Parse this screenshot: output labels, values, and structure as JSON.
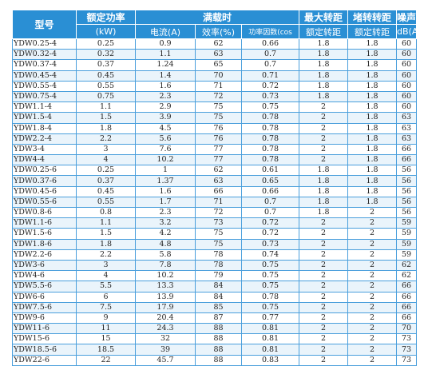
{
  "header": {
    "model": "型号",
    "rated_power": "额定功率",
    "rated_power_unit": "(kW)",
    "full_load": "满载时",
    "current": "电流(A)",
    "efficiency": "效率(%)",
    "power_factor": "功率因数(cos",
    "max_torque": "最大转距",
    "max_torque_sub": "额定转距",
    "locked_torque": "堵转转距",
    "locked_torque_sub": "额定转距",
    "noise": "噪声",
    "noise_unit": "dB(A)"
  },
  "rows": [
    [
      "YDW0.25-4",
      "0.25",
      "0.9",
      "62",
      "0.66",
      "1.8",
      "1.8",
      "60"
    ],
    [
      "YDW0.32-4",
      "0.32",
      "1.1",
      "63",
      "0.7",
      "1.8",
      "1.8",
      "60"
    ],
    [
      "YDW0.37-4",
      "0.37",
      "1.24",
      "65",
      "0.7",
      "1.8",
      "1.8",
      "60"
    ],
    [
      "YDW0.45-4",
      "0.45",
      "1.4",
      "70",
      "0.71",
      "1.8",
      "1.8",
      "60"
    ],
    [
      "YDW0.55-4",
      "0.55",
      "1.6",
      "71",
      "0.72",
      "1.8",
      "1.8",
      "60"
    ],
    [
      "YDW0.75-4",
      "0.75",
      "2.3",
      "72",
      "0.73",
      "1.8",
      "1.8",
      "60"
    ],
    [
      "YDW1.1-4",
      "1.1",
      "2.9",
      "75",
      "0.75",
      "2",
      "1.8",
      "60"
    ],
    [
      "YDW1.5-4",
      "1.5",
      "3.9",
      "75",
      "0.78",
      "2",
      "1.8",
      "63"
    ],
    [
      "YDW1.8-4",
      "1.8",
      "4.5",
      "76",
      "0.78",
      "2",
      "1.8",
      "63"
    ],
    [
      "YDW2.2-4",
      "2.2",
      "5.6",
      "76",
      "0.78",
      "2",
      "1.8",
      "63"
    ],
    [
      "YDW3-4",
      "3",
      "7.6",
      "77",
      "0.78",
      "2",
      "1.8",
      "66"
    ],
    [
      "YDW4-4",
      "4",
      "10.2",
      "77",
      "0.78",
      "2",
      "1.8",
      "66"
    ],
    [
      "YDW0.25-6",
      "0.25",
      "1",
      "62",
      "0.61",
      "1.8",
      "1.8",
      "56"
    ],
    [
      "YDW0.37-6",
      "0.37",
      "1.37",
      "63",
      "0.65",
      "1.8",
      "1.8",
      "56"
    ],
    [
      "YDW0.45-6",
      "0.45",
      "1.6",
      "66",
      "0.66",
      "1.8",
      "1.8",
      "56"
    ],
    [
      "YDW0.55-6",
      "0.55",
      "1.7",
      "71",
      "0.7",
      "1.8",
      "1.8",
      "56"
    ],
    [
      "YDW0.8-6",
      "0.8",
      "2.3",
      "72",
      "0.7",
      "1.8",
      "2",
      "56"
    ],
    [
      "YDW1.1-6",
      "1.1",
      "3.2",
      "73",
      "0.72",
      "2",
      "2",
      "59"
    ],
    [
      "YDW1.5-6",
      "1.5",
      "4.2",
      "75",
      "0.72",
      "2",
      "2",
      "59"
    ],
    [
      "YDW1.8-6",
      "1.8",
      "4.8",
      "75",
      "0.73",
      "2",
      "2",
      "59"
    ],
    [
      "YDW2.2-6",
      "2.2",
      "5.8",
      "78",
      "0.74",
      "2",
      "2",
      "59"
    ],
    [
      "YDW3-6",
      "3",
      "7.8",
      "78",
      "0.75",
      "2",
      "2",
      "62"
    ],
    [
      "YDW4-6",
      "4",
      "10.2",
      "79",
      "0.75",
      "2",
      "2",
      "62"
    ],
    [
      "YDW5.5-6",
      "5.5",
      "13.3",
      "84",
      "0.75",
      "2",
      "2",
      "66"
    ],
    [
      "YDW6-6",
      "6",
      "13.9",
      "84",
      "0.78",
      "2",
      "2",
      "66"
    ],
    [
      "YDW7.5-6",
      "7.5",
      "17.9",
      "85",
      "0.75",
      "2",
      "2",
      "66"
    ],
    [
      "YDW9-6",
      "9",
      "20.4",
      "87",
      "0.77",
      "2",
      "2",
      "66"
    ],
    [
      "YDW11-6",
      "11",
      "24.3",
      "88",
      "0.81",
      "2",
      "2",
      "70"
    ],
    [
      "YDW15-6",
      "15",
      "32",
      "88",
      "0.81",
      "2",
      "2",
      "73"
    ],
    [
      "YDW18.5-6",
      "18.5",
      "39",
      "88",
      "0.81",
      "2",
      "2",
      "73"
    ],
    [
      "YDW22-6",
      "22",
      "45.7",
      "88",
      "0.83",
      "2",
      "2",
      "73"
    ]
  ]
}
